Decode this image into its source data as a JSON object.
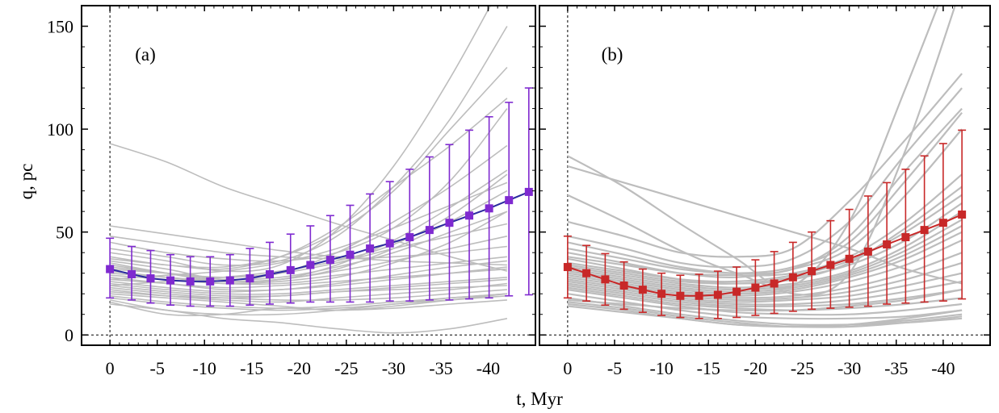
{
  "chart_data": {
    "type": "line",
    "xlabel": "t, Myr",
    "ylabel": "q,  pc",
    "xlim": [
      3,
      -45
    ],
    "ylim": [
      -5,
      160
    ],
    "x_tick_values": [
      0,
      -5,
      -10,
      -15,
      -20,
      -25,
      -30,
      -35,
      -40
    ],
    "x_tick_labels": [
      "0",
      "-5",
      "-10",
      "-15",
      "-20",
      "-25",
      "-30",
      "-35",
      "-40"
    ],
    "y_tick_values": [
      0,
      50,
      100,
      150
    ],
    "y_tick_labels": [
      "0",
      "50",
      "100",
      "150"
    ],
    "panels": [
      {
        "tag": "(a)",
        "mean_color": "#2a2a9e",
        "marker_color": "#7f2ad0",
        "t": [
          0,
          -2.3,
          -4.3,
          -6.4,
          -8.5,
          -10.6,
          -12.7,
          -14.8,
          -16.9,
          -19.1,
          -21.2,
          -23.3,
          -25.4,
          -27.5,
          -29.6,
          -31.7,
          -33.8,
          -35.9,
          -38.0,
          -40.1,
          -42.2,
          -44.3
        ],
        "mean": [
          32,
          29.5,
          27.5,
          26.5,
          26,
          26,
          26.5,
          27.5,
          29.5,
          31.5,
          34,
          36.5,
          39,
          42,
          44.5,
          47.5,
          51,
          54.5,
          58,
          61.5,
          65.5,
          69.5
        ],
        "upper": [
          47,
          43,
          41,
          39,
          38,
          38,
          39,
          42,
          45,
          49,
          53,
          58,
          63,
          68.5,
          74.5,
          80.5,
          86.5,
          92.5,
          99.5,
          106,
          113,
          120
        ],
        "lower": [
          18,
          17,
          15.5,
          14.5,
          14,
          14,
          14,
          14.5,
          15,
          15.5,
          16,
          16,
          16,
          16,
          16.5,
          16.5,
          17,
          17,
          17.5,
          18,
          19,
          19.5
        ],
        "background_tracks": [
          {
            "y": [
              93,
              84,
              72,
              63,
              54,
              46,
              38,
              31
            ]
          },
          {
            "y": [
              53,
              49,
              45,
              41,
              38,
              36,
              35,
              34
            ]
          },
          {
            "y": [
              48,
              44,
              40,
              38,
              37,
              38,
              40,
              43
            ]
          },
          {
            "y": [
              45,
              40,
              37,
              36,
              40,
              52,
              75,
              110
            ]
          },
          {
            "y": [
              42,
              38,
              34,
              36,
              48,
              72,
              105,
              150
            ]
          },
          {
            "y": [
              40,
              36,
              31,
              34,
              51,
              82,
              125,
              175
            ]
          },
          {
            "y": [
              38,
              34,
              33,
              38,
              50,
              70,
              100,
              130
            ]
          },
          {
            "y": [
              37,
              34,
              32,
              38,
              52,
              72,
              92,
              115
            ]
          },
          {
            "y": [
              36,
              32,
              27,
              30,
              40,
              55,
              72,
              92
            ]
          },
          {
            "y": [
              35,
              30,
              26,
              27,
              34,
              46,
              62,
              80
            ]
          },
          {
            "y": [
              34,
              30,
              26,
              27,
              32,
              42,
              55,
              70
            ]
          },
          {
            "y": [
              33,
              30,
              27,
              28,
              33,
              40,
              50,
              60
            ]
          },
          {
            "y": [
              32,
              30,
              28,
              30,
              35,
              42,
              48,
              54
            ]
          },
          {
            "y": [
              31,
              28,
              25,
              25,
              28,
              35,
              45,
              60
            ]
          },
          {
            "y": [
              30,
              28,
              26,
              27,
              31,
              36,
              42,
              48
            ]
          },
          {
            "y": [
              29,
              27,
              25,
              26,
              29,
              32,
              35,
              38
            ]
          },
          {
            "y": [
              28,
              25,
              22,
              22,
              25,
              29,
              33,
              36
            ]
          },
          {
            "y": [
              27,
              25,
              23,
              24,
              26,
              28,
              30,
              32
            ]
          },
          {
            "y": [
              26,
              23,
              21,
              22,
              24,
              27,
              30,
              33
            ]
          },
          {
            "y": [
              25,
              22,
              20,
              20,
              22,
              24,
              26,
              28
            ]
          },
          {
            "y": [
              24,
              21,
              19,
              19,
              21,
              23,
              25,
              27
            ]
          },
          {
            "y": [
              23,
              20,
              18,
              17,
              17,
              18,
              20,
              22
            ]
          },
          {
            "y": [
              22,
              19,
              17,
              16,
              18,
              20,
              22,
              25
            ]
          },
          {
            "y": [
              21,
              19,
              18,
              19,
              21,
              22,
              23,
              24
            ]
          },
          {
            "y": [
              20,
              18,
              16,
              14,
              12,
              14,
              17,
              20
            ]
          },
          {
            "y": [
              19,
              16,
              14,
              13,
              14,
              16,
              18,
              20
            ]
          },
          {
            "y": [
              18,
              15,
              13,
              12,
              13,
              15,
              18,
              20
            ]
          },
          {
            "y": [
              17,
              12,
              10,
              10,
              12,
              15,
              17,
              19
            ]
          },
          {
            "y": [
              16,
              10,
              10,
              13,
              12,
              13,
              15,
              17
            ]
          },
          {
            "y": [
              15,
              12,
              8,
              6,
              3,
              1,
              3,
              8
            ]
          },
          {
            "y": [
              24,
              26,
              28,
              31,
              36,
              44,
              58,
              78
            ]
          },
          {
            "y": [
              27,
              29,
              31,
              35,
              42,
              52,
              63,
              74
            ]
          }
        ]
      },
      {
        "tag": "(b)",
        "mean_color": "#c82828",
        "marker_color": "#c82828",
        "t": [
          0,
          -2.0,
          -4.0,
          -6.0,
          -8.0,
          -10.0,
          -12.0,
          -14.0,
          -16.0,
          -18.0,
          -20.0,
          -22.0,
          -24.0,
          -26.0,
          -28.0,
          -30.0,
          -32.0,
          -34.0,
          -36.0,
          -38.0,
          -40.0,
          -42.0
        ],
        "mean": [
          33,
          30,
          27,
          24,
          22,
          20,
          19,
          19,
          19.5,
          21,
          23,
          25,
          28,
          31,
          34,
          37,
          40.5,
          44,
          47.5,
          51,
          54.5,
          58.5
        ],
        "upper": [
          48,
          43.5,
          39.5,
          35.5,
          32,
          30,
          29,
          29.5,
          31,
          33,
          36.5,
          40.5,
          45,
          50,
          55.5,
          61,
          67.5,
          74,
          80.5,
          87,
          93,
          99.5
        ],
        "lower": [
          18,
          16.5,
          14.5,
          12.5,
          11,
          9.5,
          8.5,
          8,
          8,
          8.5,
          9.5,
          10.5,
          11.5,
          12.5,
          13,
          13.5,
          14,
          15,
          15.5,
          16,
          16.5,
          17.5
        ],
        "background_tracks": [
          {
            "y": [
              87,
              72,
              54,
              37,
              20,
              30,
              90,
              170
            ]
          },
          {
            "y": [
              68,
              55,
              41,
              30,
              24,
              55,
              120,
              190
            ]
          },
          {
            "y": [
              82,
              74,
              66,
              58,
              50,
              42,
              32,
              25
            ]
          },
          {
            "y": [
              55,
              48,
              40,
              38,
              42,
              65,
              95,
              127
            ]
          },
          {
            "y": [
              48,
              42,
              35,
              33,
              37,
              55,
              88,
              120
            ]
          },
          {
            "y": [
              45,
              39,
              33,
              30,
              32,
              48,
              80,
              110
            ]
          },
          {
            "y": [
              42,
              37,
              32,
              30,
              33,
              45,
              75,
              108
            ]
          },
          {
            "y": [
              40,
              35,
              30,
              28,
              32,
              42,
              68,
              100
            ]
          },
          {
            "y": [
              38,
              34,
              30,
              29,
              30,
              38,
              55,
              78
            ]
          },
          {
            "y": [
              37,
              32,
              27,
              25,
              27,
              35,
              52,
              72
            ]
          },
          {
            "y": [
              35,
              31,
              27,
              26,
              29,
              36,
              50,
              68
            ]
          },
          {
            "y": [
              34,
              30,
              26,
              25,
              28,
              34,
              46,
              64
            ]
          },
          {
            "y": [
              33,
              29,
              25,
              23,
              25,
              31,
              43,
              60
            ]
          },
          {
            "y": [
              32,
              28,
              24,
              22,
              24,
              30,
              41,
              56
            ]
          },
          {
            "y": [
              31,
              27,
              23,
              21,
              23,
              29,
              39,
              53
            ]
          },
          {
            "y": [
              30,
              26,
              22,
              20,
              22,
              28,
              37,
              50
            ]
          },
          {
            "y": [
              29,
              25,
              21,
              19,
              21,
              26,
              34,
              46
            ]
          },
          {
            "y": [
              28,
              24,
              20,
              18,
              19,
              23,
              30,
              40
            ]
          },
          {
            "y": [
              27,
              23,
              19,
              17,
              18,
              21,
              27,
              35
            ]
          },
          {
            "y": [
              26,
              22,
              18,
              16,
              17,
              19,
              24,
              30
            ]
          },
          {
            "y": [
              25,
              21,
              17,
              15,
              15,
              17,
              21,
              26
            ]
          },
          {
            "y": [
              24,
              20,
              16,
              14,
              14,
              15,
              18,
              22
            ]
          },
          {
            "y": [
              23,
              19,
              15,
              13,
              12,
              13,
              15,
              18
            ]
          },
          {
            "y": [
              22,
              18,
              14,
              11,
              10,
              10,
              12,
              15
            ]
          },
          {
            "y": [
              20,
              16,
              12,
              9,
              8,
              8,
              9,
              12
            ]
          },
          {
            "y": [
              18,
              14,
              10,
              7,
              5,
              5,
              6,
              8
            ]
          },
          {
            "y": [
              16,
              13,
              9,
              6,
              4,
              5,
              7,
              10
            ]
          },
          {
            "y": [
              15,
              12,
              8,
              5,
              4,
              4,
              6,
              9
            ]
          },
          {
            "y": [
              14,
              11,
              8,
              5,
              4,
              5,
              8,
              12
            ]
          },
          {
            "y": [
              17,
              15,
              13,
              12,
              12,
              14,
              17,
              22
            ]
          }
        ]
      }
    ]
  }
}
